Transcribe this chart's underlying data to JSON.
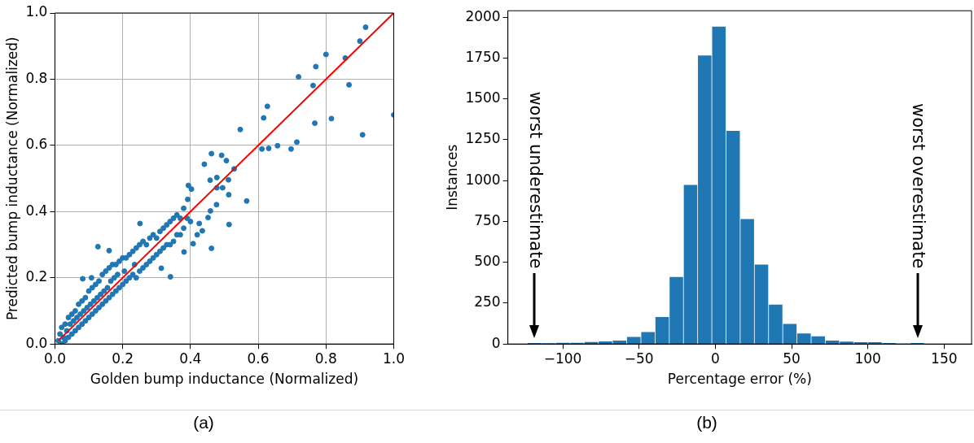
{
  "chart_data": [
    {
      "type": "scatter",
      "xlabel": "Golden bump inductance (Normalized)",
      "ylabel": "Predicted bump inductance (Normalized)",
      "annotations": [
        "(a)"
      ],
      "xlim": [
        0,
        1
      ],
      "ylim": [
        0,
        1
      ],
      "xticks": [
        {
          "value": 0,
          "label": "0.0"
        },
        0.2,
        0.4,
        0.6,
        0.8,
        {
          "value": 1,
          "label": "1.0"
        }
      ],
      "yticks": [
        {
          "value": 0,
          "label": "0.0"
        },
        0.2,
        0.4,
        0.6,
        0.8,
        {
          "value": 1,
          "label": "1.0"
        }
      ],
      "grid": true,
      "marker": "circle",
      "series": [
        {
          "color": "#1f77b4",
          "x": [
            0.01,
            0.015,
            0.02,
            0.02,
            0.025,
            0.03,
            0.03,
            0.035,
            0.04,
            0.04,
            0.045,
            0.05,
            0.05,
            0.055,
            0.06,
            0.06,
            0.065,
            0.07,
            0.07,
            0.075,
            0.08,
            0.08,
            0.085,
            0.09,
            0.09,
            0.095,
            0.1,
            0.1,
            0.105,
            0.11,
            0.11,
            0.115,
            0.12,
            0.12,
            0.125,
            0.13,
            0.13,
            0.135,
            0.14,
            0.14,
            0.145,
            0.15,
            0.15,
            0.155,
            0.16,
            0.16,
            0.165,
            0.17,
            0.17,
            0.175,
            0.18,
            0.18,
            0.185,
            0.19,
            0.19,
            0.2,
            0.2,
            0.205,
            0.21,
            0.21,
            0.22,
            0.22,
            0.23,
            0.23,
            0.235,
            0.24,
            0.24,
            0.25,
            0.25,
            0.26,
            0.26,
            0.27,
            0.27,
            0.28,
            0.28,
            0.29,
            0.29,
            0.3,
            0.3,
            0.31,
            0.31,
            0.32,
            0.32,
            0.33,
            0.33,
            0.34,
            0.34,
            0.35,
            0.35,
            0.36,
            0.36,
            0.37,
            0.37,
            0.38,
            0.38,
            0.39,
            0.4,
            0.42,
            0.917,
            0.9,
            0.8,
            0.857,
            0.77,
            0.719,
            0.762,
            0.868,
            0.627,
            0.616,
            0.767,
            0.816,
            1.0,
            0.908,
            0.547,
            0.657,
            0.714,
            0.611,
            0.631,
            0.697,
            0.462,
            0.492,
            0.506,
            0.441,
            0.529,
            0.458,
            0.478,
            0.512,
            0.394,
            0.403,
            0.478,
            0.495,
            0.513,
            0.566,
            0.392,
            0.477,
            0.459,
            0.452,
            0.426,
            0.435,
            0.514,
            0.462,
            0.408,
            0.381,
            0.341,
            0.314,
            0.251,
            0.127,
            0.16,
            0.082,
            0.108
          ],
          "values": [
            0.01,
            0.03,
            0.0,
            0.05,
            0.02,
            0.06,
            0.01,
            0.04,
            0.08,
            0.02,
            0.06,
            0.09,
            0.03,
            0.07,
            0.1,
            0.04,
            0.08,
            0.12,
            0.05,
            0.09,
            0.13,
            0.06,
            0.1,
            0.14,
            0.07,
            0.11,
            0.16,
            0.08,
            0.12,
            0.17,
            0.09,
            0.13,
            0.18,
            0.1,
            0.14,
            0.19,
            0.11,
            0.15,
            0.21,
            0.12,
            0.16,
            0.22,
            0.13,
            0.17,
            0.23,
            0.14,
            0.19,
            0.24,
            0.15,
            0.2,
            0.24,
            0.16,
            0.21,
            0.25,
            0.17,
            0.26,
            0.18,
            0.22,
            0.26,
            0.19,
            0.27,
            0.2,
            0.28,
            0.21,
            0.24,
            0.29,
            0.2,
            0.3,
            0.22,
            0.31,
            0.23,
            0.3,
            0.24,
            0.32,
            0.25,
            0.33,
            0.26,
            0.32,
            0.27,
            0.34,
            0.28,
            0.35,
            0.29,
            0.36,
            0.3,
            0.37,
            0.3,
            0.38,
            0.31,
            0.39,
            0.33,
            0.38,
            0.33,
            0.41,
            0.35,
            0.38,
            0.37,
            0.33,
            0.957,
            0.915,
            0.875,
            0.864,
            0.838,
            0.807,
            0.781,
            0.783,
            0.718,
            0.683,
            0.667,
            0.681,
            0.692,
            0.632,
            0.648,
            0.599,
            0.61,
            0.589,
            0.591,
            0.589,
            0.575,
            0.57,
            0.554,
            0.543,
            0.529,
            0.495,
            0.503,
            0.496,
            0.479,
            0.468,
            0.472,
            0.472,
            0.451,
            0.432,
            0.437,
            0.421,
            0.402,
            0.382,
            0.364,
            0.342,
            0.361,
            0.289,
            0.303,
            0.278,
            0.203,
            0.229,
            0.364,
            0.294,
            0.282,
            0.197,
            0.2
          ]
        },
        {
          "type": "line",
          "color": "#ff0000",
          "x": [
            0.01,
            1
          ],
          "values": [
            0.01,
            1
          ],
          "marker": "none"
        }
      ]
    },
    {
      "type": "histogram",
      "xlabel": "Percentage error (%)",
      "ylabel": "Instances",
      "color": "#1f77b4",
      "annotations": [
        "worst underestimate",
        "worst overestimate",
        "(b)"
      ],
      "bins": [
        -123.2,
        -113.9,
        -104.6,
        -95.3,
        -86,
        -76.7,
        -67.4,
        -58.1,
        -48.8,
        -39.5,
        -30.2,
        -20.9,
        -11.6,
        -2.3,
        7,
        16.3,
        25.6,
        34.9,
        44.2,
        53.5,
        62.8,
        72.1,
        81.4,
        90.7,
        100,
        109.3,
        118.6,
        127.9,
        137.2
      ],
      "values": [
        4,
        3,
        5,
        5,
        10,
        14,
        19,
        42,
        72,
        163,
        409,
        972,
        1765,
        1941,
        1303,
        763,
        485,
        239,
        121,
        63,
        45,
        19,
        13,
        9,
        9,
        4,
        0,
        4
      ],
      "xlim": [
        -136,
        168
      ],
      "xticks": [
        {
          "value": -100,
          "label": "−100"
        },
        {
          "value": -50,
          "label": "−50"
        },
        0,
        50,
        100,
        150
      ],
      "ylim": [
        0,
        2040
      ],
      "yticks": [
        0,
        250,
        500,
        750,
        1000,
        1250,
        1500,
        1750,
        2000
      ]
    }
  ]
}
